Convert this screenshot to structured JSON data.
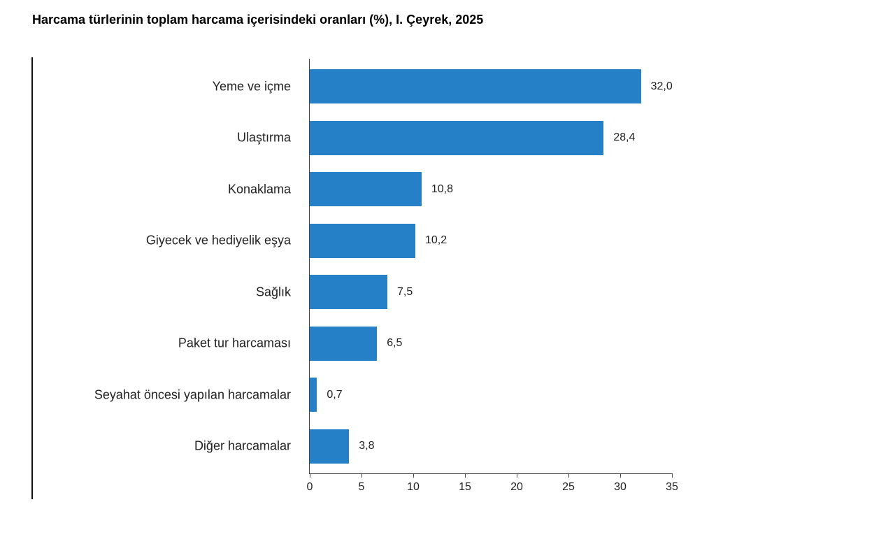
{
  "chart_data": {
    "type": "bar",
    "orientation": "horizontal",
    "title": "Harcama türlerinin toplam harcama içerisindeki oranları (%), I. Çeyrek, 2025",
    "xlabel": "",
    "ylabel": "",
    "categories": [
      "Yeme ve içme",
      "Ulaştırma",
      "Konaklama",
      "Giyecek ve hediyelik eşya",
      "Sağlık",
      "Paket tur harcaması",
      "Seyahat öncesi yapılan harcamalar",
      "Diğer harcamalar"
    ],
    "values": [
      32.0,
      28.4,
      10.8,
      10.2,
      7.5,
      6.5,
      0.7,
      3.8
    ],
    "value_labels": [
      "32,0",
      "28,4",
      "10,8",
      "10,2",
      "7,5",
      "6,5",
      "0,7",
      "3,8"
    ],
    "xlim": [
      0,
      35
    ],
    "x_ticks": [
      "0",
      "5",
      "10",
      "15",
      "20",
      "25",
      "30",
      "35"
    ],
    "grid": false,
    "legend": null,
    "bar_color": "#2580c8"
  }
}
